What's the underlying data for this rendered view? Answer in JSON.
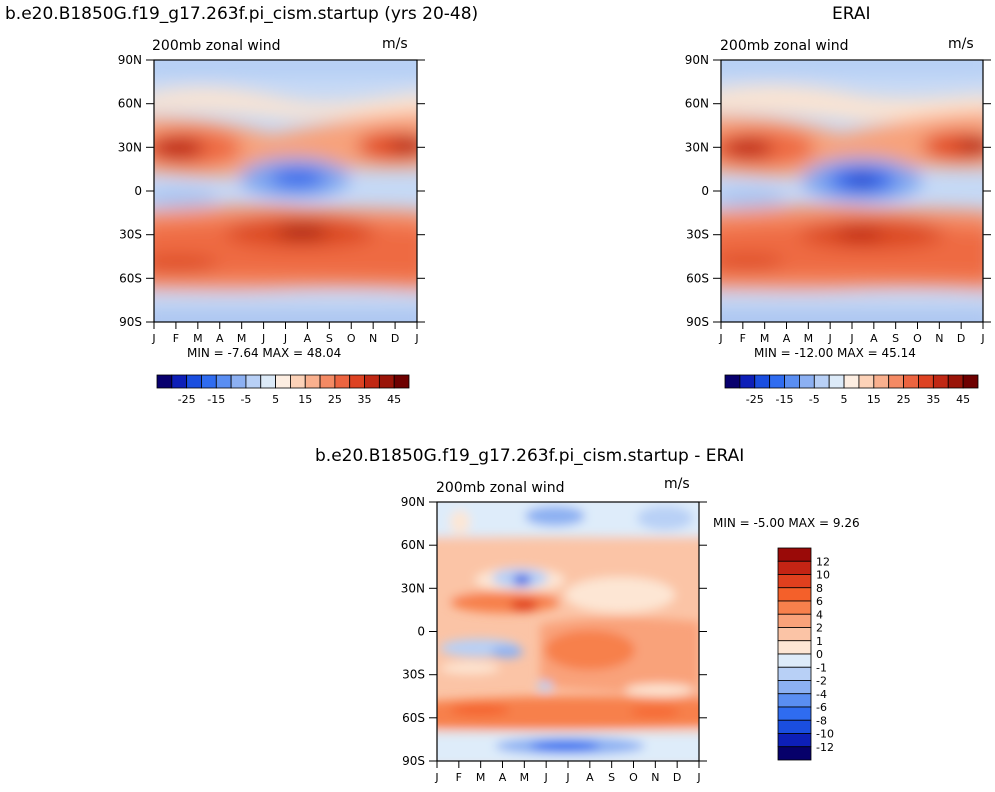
{
  "panels": {
    "model": {
      "title": "b.e20.B1850G.f19_g17.263f.pi_cism.startup (yrs 20-48)",
      "subtitle": "200mb  zonal wind",
      "units": "m/s",
      "minmax": "MIN =   -7.64  MAX =  48.04"
    },
    "obs": {
      "title": "ERAI",
      "subtitle": "200mb  zonal wind",
      "units": "m/s",
      "minmax": "MIN = -12.00  MAX =  45.14"
    },
    "diff": {
      "title": "b.e20.B1850G.f19_g17.263f.pi_cism.startup  -  ERAI",
      "subtitle": "200mb  zonal wind",
      "units": "m/s",
      "minmax": "MIN =   -5.00  MAX =    9.26"
    }
  },
  "chart_data": [
    {
      "type": "heatmap",
      "panel": "model",
      "title": "b.e20.B1850G.f19_g17.263f.pi_cism.startup (yrs 20-48)",
      "subtitle": "200mb  zonal wind",
      "units": "m/s",
      "x_tick_labels": [
        "J",
        "F",
        "M",
        "A",
        "M",
        "J",
        "J",
        "A",
        "S",
        "O",
        "N",
        "D",
        "J"
      ],
      "y_tick_labels": [
        "90N",
        "60N",
        "30N",
        "0",
        "30S",
        "60S",
        "90S"
      ],
      "y_values": [
        90,
        60,
        30,
        0,
        -30,
        -60,
        -90
      ],
      "contour_levels": [
        -30,
        -25,
        -20,
        -15,
        -10,
        -5,
        0,
        5,
        10,
        15,
        20,
        25,
        30,
        35,
        40,
        45,
        50
      ],
      "colorbar_labels": [
        "-25",
        "-15",
        "-5",
        "5",
        "15",
        "25",
        "35",
        "45"
      ],
      "min": -7.64,
      "max": 48.04
    },
    {
      "type": "heatmap",
      "panel": "obs",
      "title": "ERAI",
      "subtitle": "200mb  zonal wind",
      "units": "m/s",
      "x_tick_labels": [
        "J",
        "F",
        "M",
        "A",
        "M",
        "J",
        "J",
        "A",
        "S",
        "O",
        "N",
        "D",
        "J"
      ],
      "y_tick_labels": [
        "90N",
        "60N",
        "30N",
        "0",
        "30S",
        "60S",
        "90S"
      ],
      "y_values": [
        90,
        60,
        30,
        0,
        -30,
        -60,
        -90
      ],
      "contour_levels": [
        -30,
        -25,
        -20,
        -15,
        -10,
        -5,
        0,
        5,
        10,
        15,
        20,
        25,
        30,
        35,
        40,
        45,
        50
      ],
      "colorbar_labels": [
        "-25",
        "-15",
        "-5",
        "5",
        "15",
        "25",
        "35",
        "45"
      ],
      "min": -12.0,
      "max": 45.14
    },
    {
      "type": "heatmap",
      "panel": "diff",
      "title": "b.e20.B1850G.f19_g17.263f.pi_cism.startup  -  ERAI",
      "subtitle": "200mb  zonal wind",
      "units": "m/s",
      "x_tick_labels": [
        "J",
        "F",
        "M",
        "A",
        "M",
        "J",
        "J",
        "A",
        "S",
        "O",
        "N",
        "D",
        "J"
      ],
      "y_tick_labels": [
        "90N",
        "60N",
        "30N",
        "0",
        "30S",
        "60S",
        "90S"
      ],
      "y_values": [
        90,
        60,
        30,
        0,
        -30,
        -60,
        -90
      ],
      "contour_levels": [
        -12,
        -10,
        -8,
        -6,
        -4,
        -2,
        -1,
        0,
        1,
        2,
        4,
        6,
        8,
        10,
        12
      ],
      "colorbar_labels": [
        "12",
        "10",
        "8",
        "6",
        "4",
        "2",
        "1",
        "0",
        "-1",
        "-2",
        "-4",
        "-6",
        "-8",
        "-10",
        "-12"
      ],
      "min": -5.0,
      "max": 9.26
    }
  ],
  "colors": {
    "full_scale": [
      "#08006e",
      "#0d1fb8",
      "#1a4ee0",
      "#2f6cf0",
      "#5a8ef2",
      "#8cb0f2",
      "#b8d0f6",
      "#dceaf8",
      "#fdeee2",
      "#fcd2b8",
      "#f9b08e",
      "#f48a64",
      "#ec6440",
      "#dd4222",
      "#c02814",
      "#9a1408",
      "#6e0000"
    ],
    "diff_scale": [
      "#9a0a08",
      "#c42414",
      "#e0401e",
      "#f4602a",
      "#f7804c",
      "#f9a27a",
      "#fbc4a6",
      "#fde6d4",
      "#deecfa",
      "#b8d0f6",
      "#8cb0f2",
      "#5a8ef2",
      "#2f6cf0",
      "#1a4ee0",
      "#0d1fb8",
      "#06006a"
    ]
  }
}
